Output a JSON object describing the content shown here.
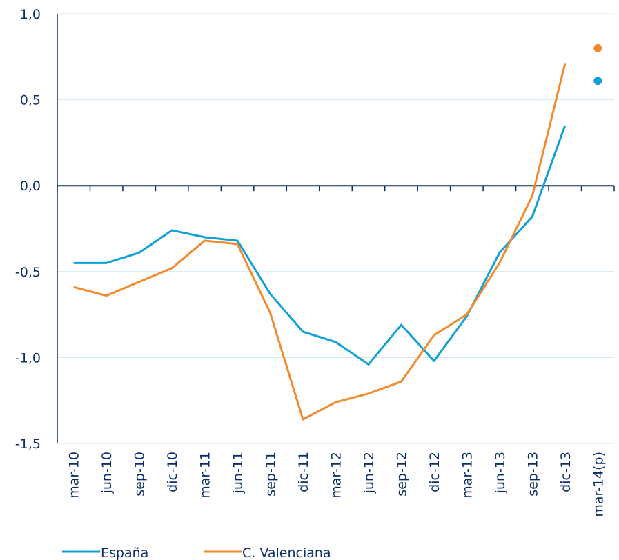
{
  "chart_data": {
    "type": "line",
    "categories": [
      "mar-10",
      "jun-10",
      "sep-10",
      "dic-10",
      "mar-11",
      "jun-11",
      "sep-11",
      "dic-11",
      "mar-12",
      "jun-12",
      "sep-12",
      "dic-12",
      "mar-13",
      "jun-13",
      "sep-13",
      "dic-13",
      "mar-14(p)"
    ],
    "series": [
      {
        "name": "España",
        "color": "#0fa0d8",
        "values": [
          -0.45,
          -0.45,
          -0.39,
          -0.26,
          -0.3,
          -0.32,
          -0.63,
          -0.85,
          -0.91,
          -1.04,
          -0.81,
          -1.02,
          -0.76,
          -0.39,
          -0.18,
          0.35,
          null
        ],
        "projected_value": 0.61
      },
      {
        "name": "C. Valenciana",
        "color": "#f28a2e",
        "values": [
          -0.59,
          -0.64,
          -0.56,
          -0.48,
          -0.32,
          -0.34,
          -0.74,
          -1.36,
          -1.26,
          -1.21,
          -1.14,
          -0.87,
          -0.75,
          -0.45,
          -0.06,
          0.71,
          null
        ],
        "projected_value": 0.8
      }
    ],
    "ylim": [
      -1.5,
      1.0
    ],
    "yticks": [
      {
        "value": -1.5,
        "label": "-1,5"
      },
      {
        "value": -1.0,
        "label": "-1,0"
      },
      {
        "value": -0.5,
        "label": "-0,5"
      },
      {
        "value": 0,
        "label": "0,0"
      },
      {
        "value": 0.5,
        "label": "0,5"
      },
      {
        "value": 1.0,
        "label": "1,0"
      }
    ],
    "grid": true
  }
}
